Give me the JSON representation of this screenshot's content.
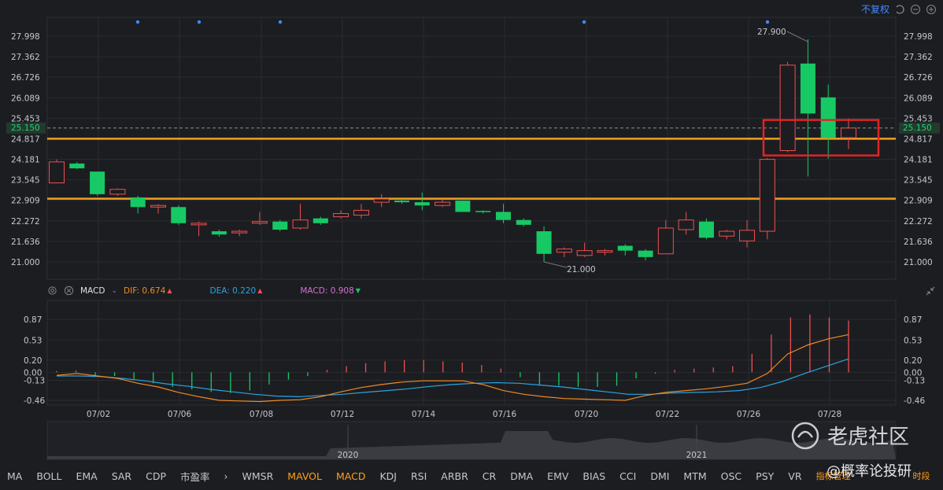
{
  "toolbar": {
    "adjust_label": "不复权"
  },
  "price_axis": {
    "ticks": [
      "27.998",
      "27.362",
      "26.726",
      "26.089",
      "25.453",
      "24.817",
      "24.181",
      "23.545",
      "22.909",
      "22.272",
      "21.636",
      "21.000"
    ]
  },
  "current_price": "25.150",
  "high_label": "27.900",
  "low_label": "21.000",
  "macd_header": {
    "name": "MACD",
    "dif": "DIF: 0.674",
    "dea": "DEA: 0.220",
    "macd": "MACD: 0.908"
  },
  "macd_axis": {
    "ticks": [
      "0.87",
      "0.53",
      "0.20",
      "0.00",
      "-0.13",
      "-0.46"
    ]
  },
  "dates": [
    "07/02",
    "07/06",
    "07/08",
    "07/12",
    "07/14",
    "07/16",
    "07/20",
    "07/22",
    "07/26",
    "07/28"
  ],
  "overview_years": [
    "2020",
    "2021"
  ],
  "indicators": [
    "MA",
    "BOLL",
    "EMA",
    "SAR",
    "CDP",
    "市盈率",
    "WMSR",
    "MAVOL",
    "MACD",
    "KDJ",
    "RSI",
    "ARBR",
    "CR",
    "DMA",
    "EMV",
    "BIAS",
    "CCI",
    "DMI",
    "MTM",
    "OSC",
    "PSY",
    "VR"
  ],
  "indicator_manage": "指标管理",
  "period_label": "时段",
  "watermark": {
    "brand": "老虎社区",
    "author": "@概率论投研"
  },
  "colors": {
    "up": "#ef4f4f",
    "down": "#17c964",
    "support": "#f0a020",
    "dif": "#f08a24",
    "dea": "#2ba4e0",
    "macd_label": "#d36fd3"
  },
  "chart_data": {
    "type": "candlestick",
    "y_range": [
      21.0,
      27.998
    ],
    "candles": [
      {
        "o": 23.45,
        "c": 24.1,
        "h": 24.18,
        "l": 23.45,
        "dir": "up"
      },
      {
        "o": 24.05,
        "c": 23.9,
        "h": 24.1,
        "l": 23.88,
        "dir": "down"
      },
      {
        "o": 23.8,
        "c": 23.1,
        "h": 23.8,
        "l": 23.05,
        "dir": "down"
      },
      {
        "o": 23.1,
        "c": 23.25,
        "h": 23.28,
        "l": 23.05,
        "dir": "up"
      },
      {
        "o": 23.0,
        "c": 22.7,
        "h": 23.05,
        "l": 22.5,
        "dir": "down"
      },
      {
        "o": 22.7,
        "c": 22.75,
        "h": 22.8,
        "l": 22.5,
        "dir": "up"
      },
      {
        "o": 22.7,
        "c": 22.2,
        "h": 22.75,
        "l": 22.15,
        "dir": "down"
      },
      {
        "o": 22.15,
        "c": 22.2,
        "h": 22.25,
        "l": 21.8,
        "dir": "up"
      },
      {
        "o": 21.95,
        "c": 21.85,
        "h": 22.0,
        "l": 21.78,
        "dir": "down"
      },
      {
        "o": 21.9,
        "c": 21.95,
        "h": 22.0,
        "l": 21.8,
        "dir": "up"
      },
      {
        "o": 22.2,
        "c": 22.25,
        "h": 22.55,
        "l": 22.15,
        "dir": "up"
      },
      {
        "o": 22.25,
        "c": 22.0,
        "h": 22.3,
        "l": 21.95,
        "dir": "down"
      },
      {
        "o": 22.05,
        "c": 22.3,
        "h": 22.8,
        "l": 22.0,
        "dir": "up"
      },
      {
        "o": 22.35,
        "c": 22.2,
        "h": 22.4,
        "l": 22.15,
        "dir": "down"
      },
      {
        "o": 22.4,
        "c": 22.5,
        "h": 22.6,
        "l": 22.35,
        "dir": "up"
      },
      {
        "o": 22.45,
        "c": 22.6,
        "h": 22.8,
        "l": 22.35,
        "dir": "up"
      },
      {
        "o": 22.85,
        "c": 22.95,
        "h": 23.1,
        "l": 22.7,
        "dir": "up"
      },
      {
        "o": 22.9,
        "c": 22.85,
        "h": 22.95,
        "l": 22.8,
        "dir": "down"
      },
      {
        "o": 22.85,
        "c": 22.75,
        "h": 23.15,
        "l": 22.6,
        "dir": "down"
      },
      {
        "o": 22.75,
        "c": 22.85,
        "h": 22.95,
        "l": 22.7,
        "dir": "up"
      },
      {
        "o": 22.9,
        "c": 22.55,
        "h": 22.9,
        "l": 22.55,
        "dir": "down"
      },
      {
        "o": 22.58,
        "c": 22.55,
        "h": 22.6,
        "l": 22.5,
        "dir": "down"
      },
      {
        "o": 22.55,
        "c": 22.3,
        "h": 22.8,
        "l": 22.2,
        "dir": "down"
      },
      {
        "o": 22.3,
        "c": 22.15,
        "h": 22.35,
        "l": 22.1,
        "dir": "down"
      },
      {
        "o": 21.95,
        "c": 21.25,
        "h": 22.1,
        "l": 21.0,
        "dir": "down"
      },
      {
        "o": 21.3,
        "c": 21.4,
        "h": 21.45,
        "l": 21.15,
        "dir": "up"
      },
      {
        "o": 21.2,
        "c": 21.35,
        "h": 21.6,
        "l": 21.15,
        "dir": "up"
      },
      {
        "o": 21.3,
        "c": 21.35,
        "h": 21.4,
        "l": 21.2,
        "dir": "up"
      },
      {
        "o": 21.5,
        "c": 21.35,
        "h": 21.55,
        "l": 21.2,
        "dir": "down"
      },
      {
        "o": 21.35,
        "c": 21.15,
        "h": 21.4,
        "l": 21.05,
        "dir": "down"
      },
      {
        "o": 21.25,
        "c": 22.05,
        "h": 22.3,
        "l": 21.25,
        "dir": "up"
      },
      {
        "o": 22.0,
        "c": 22.3,
        "h": 22.55,
        "l": 21.85,
        "dir": "up"
      },
      {
        "o": 22.25,
        "c": 21.75,
        "h": 22.35,
        "l": 21.7,
        "dir": "down"
      },
      {
        "o": 21.8,
        "c": 21.95,
        "h": 22.0,
        "l": 21.7,
        "dir": "up"
      },
      {
        "o": 21.65,
        "c": 21.98,
        "h": 22.3,
        "l": 21.45,
        "dir": "up"
      },
      {
        "o": 21.95,
        "c": 24.18,
        "h": 24.22,
        "l": 21.7,
        "dir": "up"
      },
      {
        "o": 24.45,
        "c": 27.1,
        "h": 27.2,
        "l": 24.4,
        "dir": "up"
      },
      {
        "o": 27.15,
        "c": 25.6,
        "h": 27.9,
        "l": 23.65,
        "dir": "down"
      },
      {
        "o": 26.1,
        "c": 24.85,
        "h": 26.5,
        "l": 24.2,
        "dir": "down"
      },
      {
        "o": 24.85,
        "c": 25.15,
        "h": 25.45,
        "l": 24.5,
        "dir": "up"
      }
    ],
    "support_lines": [
      24.82,
      22.96
    ],
    "highlight_box": {
      "y_from": 24.3,
      "y_to": 25.4
    },
    "macd": {
      "y_range": [
        -0.46,
        0.87
      ],
      "hist": [
        0.02,
        0.03,
        -0.05,
        -0.06,
        -0.12,
        -0.18,
        -0.24,
        -0.28,
        -0.32,
        -0.34,
        -0.3,
        -0.2,
        -0.12,
        -0.06,
        0.04,
        0.1,
        0.15,
        0.18,
        0.2,
        0.2,
        0.18,
        0.16,
        0.12,
        0.06,
        -0.08,
        -0.2,
        -0.22,
        -0.24,
        -0.24,
        -0.22,
        -0.1,
        -0.02,
        0.04,
        0.06,
        0.08,
        0.1,
        0.3,
        0.62,
        0.9,
        0.95,
        0.9,
        0.85
      ],
      "dif": [
        -0.05,
        -0.02,
        -0.06,
        -0.1,
        -0.18,
        -0.24,
        -0.33,
        -0.4,
        -0.46,
        -0.47,
        -0.48,
        -0.46,
        -0.45,
        -0.4,
        -0.32,
        -0.25,
        -0.2,
        -0.16,
        -0.14,
        -0.14,
        -0.14,
        -0.2,
        -0.3,
        -0.36,
        -0.4,
        -0.43,
        -0.44,
        -0.45,
        -0.46,
        -0.38,
        -0.33,
        -0.3,
        -0.27,
        -0.23,
        -0.18,
        -0.02,
        0.3,
        0.45,
        0.55,
        0.62
      ],
      "dea": [
        -0.06,
        -0.06,
        -0.07,
        -0.1,
        -0.14,
        -0.19,
        -0.23,
        -0.28,
        -0.32,
        -0.36,
        -0.39,
        -0.4,
        -0.38,
        -0.36,
        -0.33,
        -0.3,
        -0.27,
        -0.23,
        -0.2,
        -0.18,
        -0.17,
        -0.18,
        -0.21,
        -0.24,
        -0.28,
        -0.32,
        -0.36,
        -0.36,
        -0.34,
        -0.33,
        -0.32,
        -0.3,
        -0.25,
        -0.15,
        -0.02,
        0.1,
        0.22
      ]
    }
  }
}
